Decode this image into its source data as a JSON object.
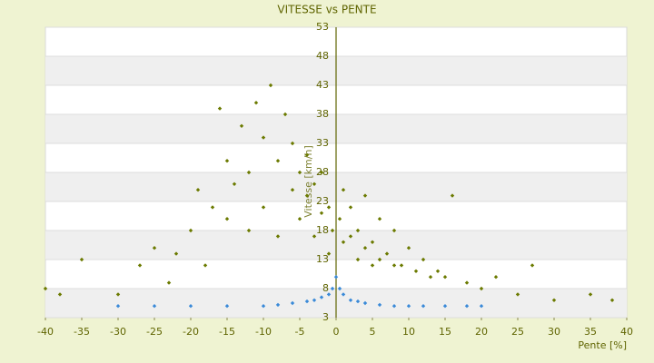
{
  "chart_data": {
    "type": "scatter",
    "title": "VITESSE vs PENTE",
    "x_label": "Pente [%]",
    "y_label": "Vitesse [km/h]",
    "xlim": [
      -40,
      40
    ],
    "xticks": [
      -40,
      -35,
      -30,
      -25,
      -20,
      -15,
      -10,
      -5,
      0,
      5,
      10,
      15,
      20,
      25,
      30,
      35,
      40
    ],
    "ylim": [
      3,
      53
    ],
    "yticks": [
      3,
      8,
      13,
      18,
      23,
      28,
      33,
      38,
      43,
      48,
      53
    ],
    "grid": true,
    "series": [
      {
        "color": "#6b7a00",
        "x": [
          -40,
          -38,
          -35,
          -30,
          -27,
          -25,
          -23,
          -22,
          -20,
          -19,
          -18,
          -17,
          -16,
          -15,
          -15,
          -14,
          -13,
          -12,
          -12,
          -11,
          -10,
          -10,
          -9,
          -8,
          -8,
          -7,
          -6,
          -6,
          -5,
          -5,
          -4,
          -4,
          -3,
          -3,
          -2,
          -2,
          -1,
          -1,
          -0.5,
          0.5,
          1,
          1,
          2,
          2,
          3,
          3,
          4,
          4,
          5,
          5,
          6,
          6,
          7,
          8,
          8,
          9,
          10,
          11,
          12,
          13,
          14,
          15,
          16,
          18,
          20,
          22,
          25,
          27,
          30,
          35,
          38
        ],
        "values": [
          8,
          7,
          13,
          7,
          12,
          15,
          9,
          14,
          18,
          25,
          12,
          22,
          39,
          20,
          30,
          26,
          36,
          18,
          28,
          40,
          34,
          22,
          43,
          30,
          17,
          38,
          25,
          33,
          28,
          20,
          31,
          24,
          26,
          17,
          28,
          21,
          22,
          14,
          18,
          20,
          25,
          16,
          22,
          17,
          18,
          13,
          24,
          15,
          16,
          12,
          20,
          13,
          14,
          18,
          12,
          12,
          15,
          11,
          13,
          10,
          11,
          10,
          24,
          9,
          8,
          10,
          7,
          12,
          6,
          7,
          6
        ]
      },
      {
        "color": "#3a8ad8",
        "x": [
          -30,
          -25,
          -20,
          -15,
          -10,
          -8,
          -6,
          -4,
          -3,
          -2,
          -1,
          -0.5,
          0,
          0.5,
          1,
          2,
          3,
          4,
          6,
          8,
          10,
          12,
          15,
          18,
          20
        ],
        "values": [
          5,
          5,
          5,
          5,
          5,
          5.2,
          5.5,
          5.8,
          6,
          6.5,
          7,
          8,
          10,
          8,
          7,
          6,
          5.8,
          5.5,
          5.2,
          5,
          5,
          5,
          5,
          5,
          5
        ]
      }
    ]
  }
}
